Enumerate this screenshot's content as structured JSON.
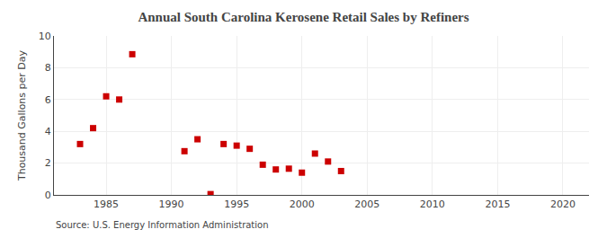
{
  "chart_data": {
    "type": "scatter",
    "title": "Annual South Carolina Kerosene Retail Sales by Refiners",
    "ylabel": "Thousand Gallons per Day",
    "annotations": [
      "Source: U.S. Energy Information Administration"
    ],
    "x": [
      1983,
      1984,
      1985,
      1986,
      1987,
      1991,
      1992,
      1993,
      1994,
      1995,
      1996,
      1997,
      1998,
      1999,
      2000,
      2001,
      2002,
      2003
    ],
    "values": [
      3.2,
      4.2,
      6.2,
      6.0,
      8.85,
      2.75,
      3.5,
      0.05,
      3.2,
      3.1,
      2.9,
      1.9,
      1.6,
      1.65,
      1.4,
      2.6,
      2.1,
      1.5
    ],
    "color": "#cc0000",
    "marker": "square",
    "xlim": [
      1981,
      2022
    ],
    "xticks": [
      1985,
      1990,
      1995,
      2000,
      2005,
      2010,
      2015,
      2020
    ],
    "ylim": [
      0,
      10
    ],
    "yticks": [
      0,
      2,
      4,
      6,
      8,
      10
    ],
    "grid": true
  }
}
